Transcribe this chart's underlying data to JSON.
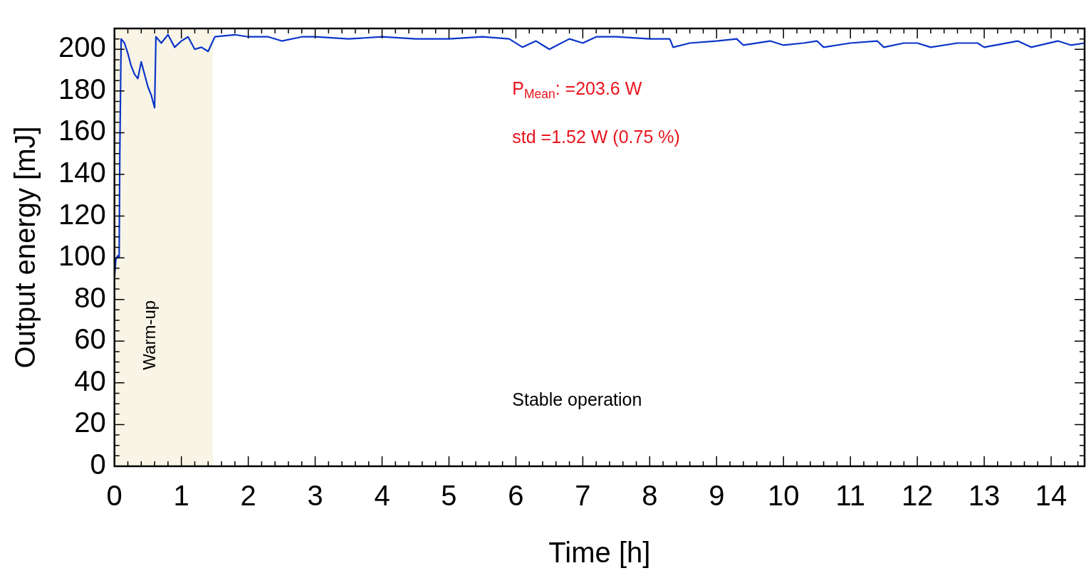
{
  "chart_data": {
    "type": "line",
    "xlabel": "Time [h]",
    "ylabel": "Output energy [mJ]",
    "x": [
      0,
      0.02,
      0.05,
      0.07,
      0.08,
      0.1,
      0.15,
      0.2,
      0.25,
      0.3,
      0.35,
      0.4,
      0.45,
      0.5,
      0.55,
      0.6,
      0.62,
      0.7,
      0.8,
      0.9,
      1.0,
      1.1,
      1.2,
      1.3,
      1.4,
      1.5,
      1.8,
      2.0,
      2.3,
      2.5,
      2.8,
      3.0,
      3.5,
      4.0,
      4.5,
      5.0,
      5.5,
      5.9,
      6.1,
      6.3,
      6.5,
      6.8,
      7.0,
      7.2,
      7.5,
      8.0,
      8.3,
      8.35,
      8.6,
      9.0,
      9.3,
      9.4,
      9.8,
      10.0,
      10.3,
      10.5,
      10.6,
      11.0,
      11.4,
      11.5,
      11.8,
      12.0,
      12.2,
      12.6,
      12.9,
      13.0,
      13.5,
      13.7,
      14.1,
      14.3,
      14.5
    ],
    "series": [
      {
        "color": "#0a35c8",
        "values": [
          90,
          99,
          101,
          100,
          150,
          205,
          203,
          198,
          192,
          188,
          186,
          194,
          188,
          182,
          178,
          172,
          206,
          203,
          207,
          201,
          204,
          206,
          200,
          201,
          199,
          206,
          207,
          206,
          206,
          204,
          206,
          206,
          205,
          206,
          205,
          205,
          206,
          205,
          201,
          204,
          200,
          205,
          203,
          206,
          206,
          205,
          205,
          201,
          203,
          204,
          205,
          202,
          204,
          202,
          203,
          204,
          201,
          203,
          204,
          201,
          203,
          203,
          201,
          203,
          203,
          201,
          204,
          201,
          204,
          202,
          203
        ]
      }
    ],
    "xlim": [
      0,
      14.5
    ],
    "xticks": [
      0,
      1,
      2,
      3,
      4,
      5,
      6,
      7,
      8,
      9,
      10,
      11,
      12,
      13,
      14
    ],
    "ylim": [
      0,
      210
    ],
    "yticks": [
      0,
      20,
      40,
      60,
      80,
      100,
      120,
      140,
      160,
      180,
      200
    ],
    "grid": false,
    "legend": false,
    "marker": "none",
    "line_style": "solid",
    "bands": [
      {
        "axis": "x",
        "from": 0,
        "to": 1.47,
        "label": "Warm-up",
        "color": "#f8f4e6"
      }
    ],
    "annotations": [
      "P$_{Mean}$: =203.6 W",
      "std =1.52 W (0.75 %)",
      "Stable operation"
    ]
  }
}
